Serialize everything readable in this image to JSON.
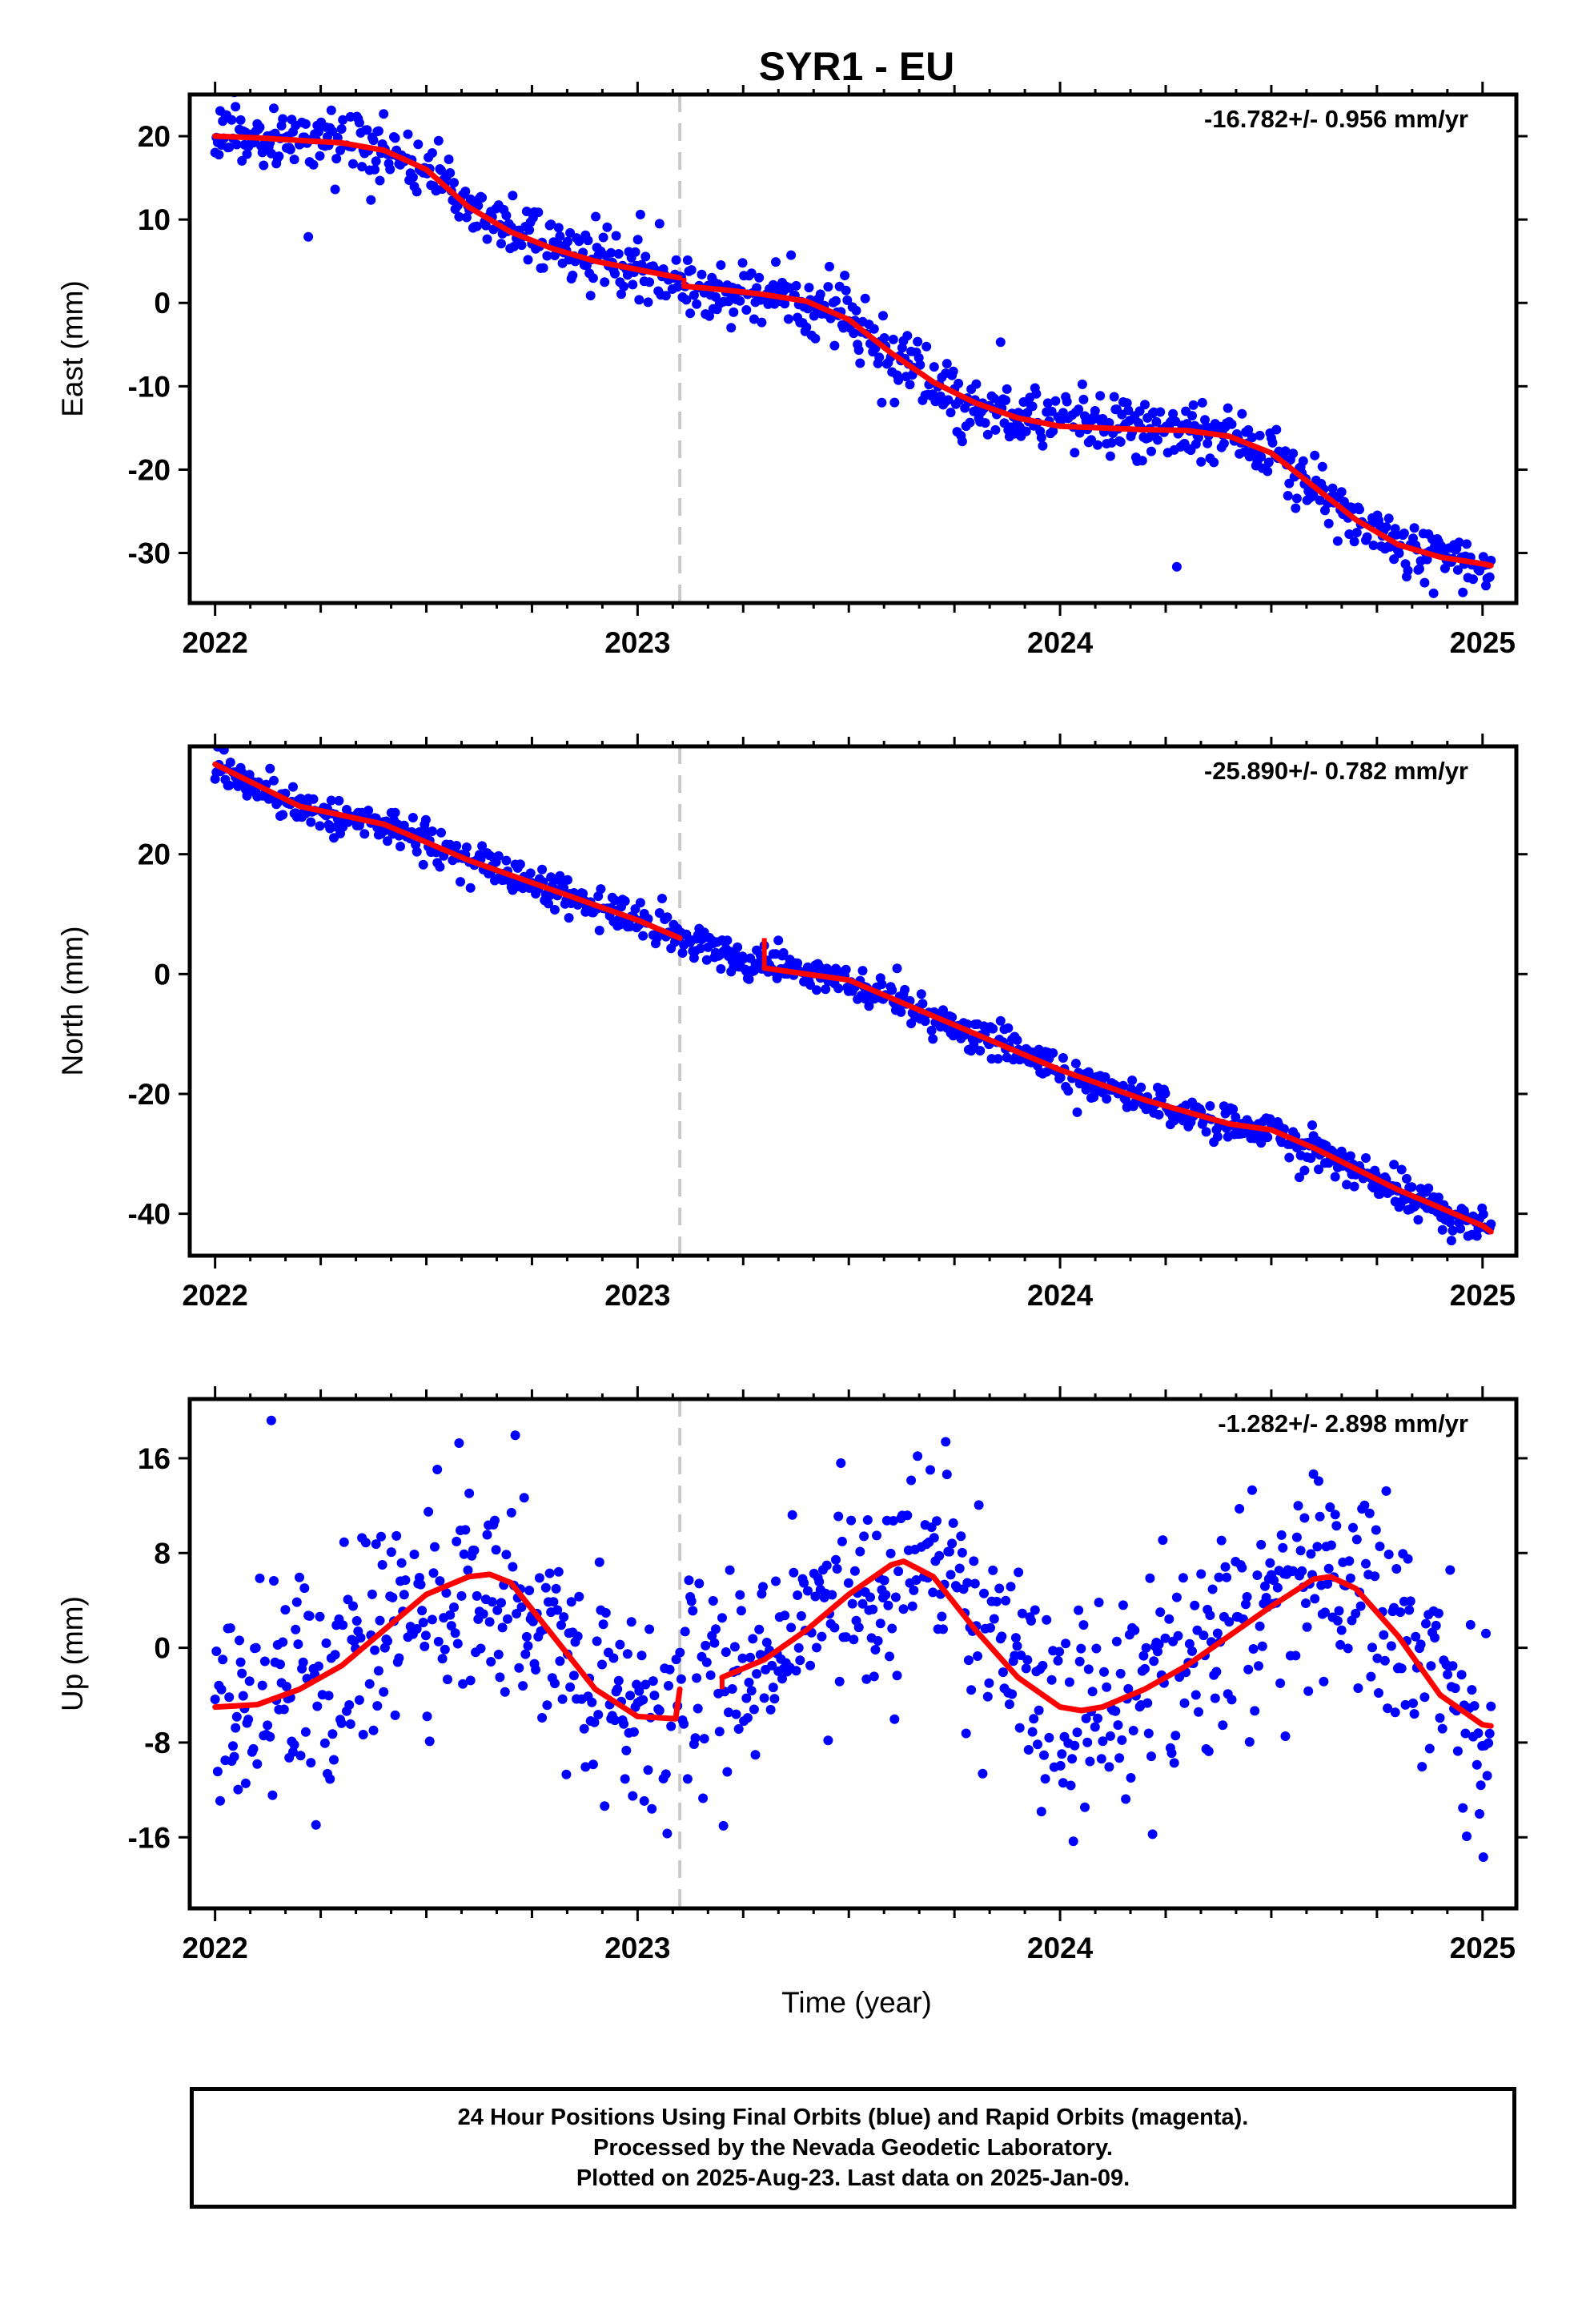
{
  "title": "SYR1 - EU",
  "x_axis_label": "Time (year)",
  "colors": {
    "data_points": "#0000ff",
    "model_fit": "#ff0000",
    "reference_line": "#c8c8c8",
    "frame": "#000000"
  },
  "chart_data": [
    {
      "type": "scatter",
      "component": "east",
      "ylabel": "East (mm)",
      "rate_text": "-16.782+/- 0.956 mm/yr",
      "xlim": [
        2021.94,
        2025.08
      ],
      "ylim": [
        -36,
        25
      ],
      "yticks": [
        20,
        10,
        0,
        -10,
        -20,
        -30
      ],
      "xticks": [
        2022,
        2023,
        2024,
        2025
      ],
      "reference_line_x": 2023.1,
      "grid": false,
      "model_fit_points": [
        [
          2022.0,
          20.0
        ],
        [
          2022.1,
          19.8
        ],
        [
          2022.2,
          19.5
        ],
        [
          2022.3,
          19.2
        ],
        [
          2022.4,
          18.3
        ],
        [
          2022.5,
          16.0
        ],
        [
          2022.6,
          11.5
        ],
        [
          2022.7,
          8.5
        ],
        [
          2022.8,
          6.5
        ],
        [
          2022.9,
          5.0
        ],
        [
          2023.0,
          4.0
        ],
        [
          2023.1,
          3.0
        ],
        [
          2023.11,
          2.0
        ],
        [
          2023.2,
          1.6
        ],
        [
          2023.3,
          1.0
        ],
        [
          2023.4,
          0.2
        ],
        [
          2023.5,
          -2.0
        ],
        [
          2023.6,
          -6.0
        ],
        [
          2023.7,
          -9.5
        ],
        [
          2023.8,
          -12.0
        ],
        [
          2023.9,
          -13.8
        ],
        [
          2024.0,
          -14.8
        ],
        [
          2024.1,
          -15.0
        ],
        [
          2024.2,
          -15.2
        ],
        [
          2024.3,
          -15.3
        ],
        [
          2024.4,
          -16.0
        ],
        [
          2024.5,
          -18.0
        ],
        [
          2024.6,
          -22.0
        ],
        [
          2024.7,
          -26.0
        ],
        [
          2024.8,
          -29.0
        ],
        [
          2024.9,
          -30.5
        ],
        [
          2025.0,
          -31.3
        ],
        [
          2025.02,
          -31.5
        ]
      ],
      "trend": {
        "start_value": 20.0,
        "rate_per_year": -16.782,
        "end_value": -31.5
      },
      "point_scatter_mm": 1.8,
      "point_count": 1000
    },
    {
      "type": "scatter",
      "component": "north",
      "ylabel": "North (mm)",
      "rate_text": "-25.890+/- 0.782 mm/yr",
      "xlim": [
        2021.94,
        2025.08
      ],
      "ylim": [
        -47,
        38
      ],
      "yticks": [
        20,
        0,
        -20,
        -40
      ],
      "xticks": [
        2022,
        2023,
        2024,
        2025
      ],
      "reference_line_x": 2023.1,
      "grid": false,
      "model_fit_points": [
        [
          2022.0,
          35.0
        ],
        [
          2022.2,
          28.0
        ],
        [
          2022.4,
          25.0
        ],
        [
          2022.6,
          19.0
        ],
        [
          2022.8,
          14.0
        ],
        [
          2023.0,
          9.0
        ],
        [
          2023.1,
          6.0
        ],
        [
          2023.3,
          1.0
        ],
        [
          2023.5,
          -1.0
        ],
        [
          2023.6,
          -4.0
        ],
        [
          2023.8,
          -10.0
        ],
        [
          2024.0,
          -16.0
        ],
        [
          2024.2,
          -21.0
        ],
        [
          2024.4,
          -25.0
        ],
        [
          2024.5,
          -26.0
        ],
        [
          2024.6,
          -29.0
        ],
        [
          2024.8,
          -36.0
        ],
        [
          2025.0,
          -42.0
        ],
        [
          2025.02,
          -43.0
        ]
      ],
      "trend": {
        "start_value": 35.0,
        "rate_per_year": -25.89,
        "end_value": -43.0
      },
      "point_scatter_mm": 1.5,
      "point_count": 1000
    },
    {
      "type": "scatter",
      "component": "up",
      "ylabel": "Up (mm)",
      "rate_text": "-1.282+/- 2.898 mm/yr",
      "xlim": [
        2021.94,
        2025.08
      ],
      "ylim": [
        -22,
        21
      ],
      "yticks": [
        16,
        8,
        0,
        -8,
        -16
      ],
      "xticks": [
        2022,
        2023,
        2024,
        2025
      ],
      "reference_line_x": 2023.1,
      "grid": false,
      "model_fit_points": [
        [
          2022.0,
          -5.0
        ],
        [
          2022.1,
          -4.8
        ],
        [
          2022.2,
          -3.5
        ],
        [
          2022.3,
          -1.5
        ],
        [
          2022.4,
          1.5
        ],
        [
          2022.5,
          4.5
        ],
        [
          2022.6,
          6.0
        ],
        [
          2022.65,
          6.2
        ],
        [
          2022.7,
          5.5
        ],
        [
          2022.8,
          1.0
        ],
        [
          2022.9,
          -3.5
        ],
        [
          2023.0,
          -5.8
        ],
        [
          2023.09,
          -6.0
        ],
        [
          2023.1,
          -3.5
        ],
        [
          2023.2,
          -2.5
        ],
        [
          2023.3,
          -1.0
        ],
        [
          2023.4,
          1.5
        ],
        [
          2023.5,
          4.5
        ],
        [
          2023.6,
          7.0
        ],
        [
          2023.63,
          7.3
        ],
        [
          2023.7,
          6.0
        ],
        [
          2023.8,
          1.5
        ],
        [
          2023.9,
          -2.5
        ],
        [
          2024.0,
          -5.0
        ],
        [
          2024.05,
          -5.3
        ],
        [
          2024.1,
          -5.0
        ],
        [
          2024.2,
          -3.5
        ],
        [
          2024.3,
          -1.5
        ],
        [
          2024.4,
          1.0
        ],
        [
          2024.5,
          3.5
        ],
        [
          2024.6,
          5.8
        ],
        [
          2024.64,
          6.0
        ],
        [
          2024.7,
          5.0
        ],
        [
          2024.8,
          1.0
        ],
        [
          2024.9,
          -4.0
        ],
        [
          2025.0,
          -6.5
        ],
        [
          2025.02,
          -6.6
        ]
      ],
      "trend": {
        "start_value": -5.0,
        "rate_per_year": -1.282,
        "end_value": -6.6
      },
      "point_scatter_mm": 4.5,
      "point_count": 1000
    }
  ],
  "footer": {
    "line1": "24 Hour Positions Using Final Orbits (blue) and Rapid Orbits (magenta).",
    "line2": "Processed by the Nevada Geodetic Laboratory.",
    "line3": "Plotted on 2025-Aug-23. Last data on 2025-Jan-09."
  }
}
